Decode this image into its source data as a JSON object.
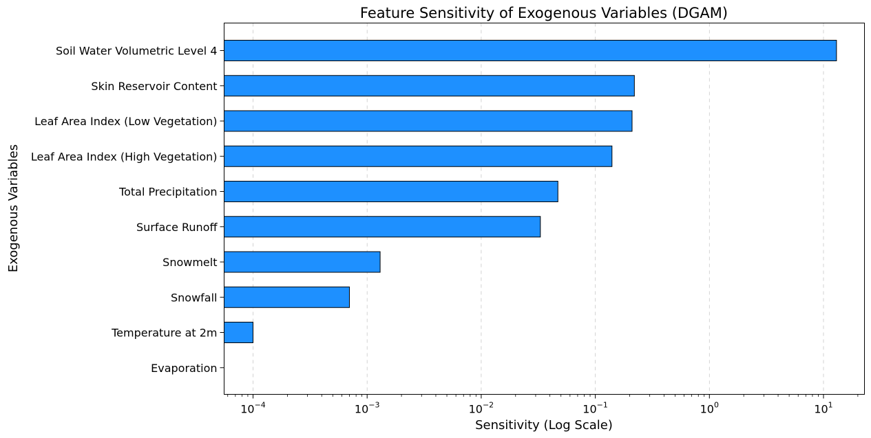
{
  "chart_data": {
    "type": "bar",
    "orientation": "horizontal",
    "title": "Feature Sensitivity of Exogenous Variables (DGAM)",
    "xlabel": "Sensitivity (Log Scale)",
    "ylabel": "Exogenous Variables",
    "xscale": "log",
    "xlim": [
      5.75e-05,
      23
    ],
    "xticks": [
      {
        "value": 0.0001,
        "base": "10",
        "exp": "−4"
      },
      {
        "value": 0.001,
        "base": "10",
        "exp": "−3"
      },
      {
        "value": 0.01,
        "base": "10",
        "exp": "−2"
      },
      {
        "value": 0.1,
        "base": "10",
        "exp": "−1"
      },
      {
        "value": 1,
        "base": "10",
        "exp": "0"
      },
      {
        "value": 10,
        "base": "10",
        "exp": "1"
      }
    ],
    "grid": "x-major-dashed",
    "bar_color": "#1e90ff",
    "bar_edge_color": "#000000",
    "categories": [
      "Soil Water Volumetric Level 4",
      "Skin Reservoir Content",
      "Leaf Area Index (Low Vegetation)",
      "Leaf Area Index (High Vegetation)",
      "Total Precipitation",
      "Surface Runoff",
      "Snowmelt",
      "Snowfall",
      "Temperature at 2m",
      "Evaporation"
    ],
    "values": [
      13.0,
      0.22,
      0.21,
      0.14,
      0.047,
      0.033,
      0.0013,
      0.0007,
      0.0001,
      0
    ]
  }
}
